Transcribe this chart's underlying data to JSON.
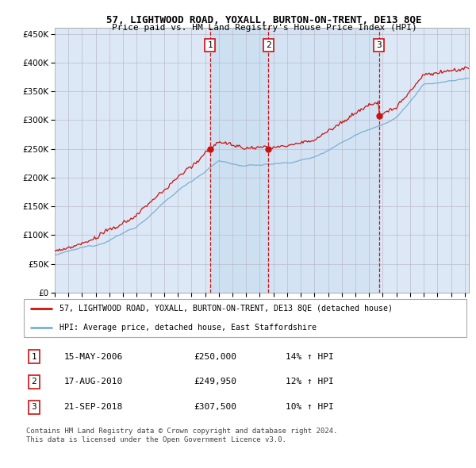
{
  "title": "57, LIGHTWOOD ROAD, YOXALL, BURTON-ON-TRENT, DE13 8QE",
  "subtitle": "Price paid vs. HM Land Registry's House Price Index (HPI)",
  "legend_line1": "57, LIGHTWOOD ROAD, YOXALL, BURTON-ON-TRENT, DE13 8QE (detached house)",
  "legend_line2": "HPI: Average price, detached house, East Staffordshire",
  "footnote": "Contains HM Land Registry data © Crown copyright and database right 2024.\nThis data is licensed under the Open Government Licence v3.0.",
  "sales": [
    {
      "num": 1,
      "date": "15-MAY-2006",
      "price": 250000,
      "hpi_pct": "14%"
    },
    {
      "num": 2,
      "date": "17-AUG-2010",
      "price": 249950,
      "hpi_pct": "12%"
    },
    {
      "num": 3,
      "date": "21-SEP-2018",
      "price": 307500,
      "hpi_pct": "10%"
    }
  ],
  "ylim": [
    0,
    460000
  ],
  "xlim_start": 1995.0,
  "xlim_end": 2025.3,
  "plot_bg": "#dce8f5",
  "red_line_color": "#cc1111",
  "blue_line_color": "#7ab0d4",
  "grid_color": "#bbbbcc",
  "sale_line_color": "#cc1111",
  "sale_box_color": "#cc1111",
  "shade_color": "#c8ddf0",
  "yticks": [
    0,
    50000,
    100000,
    150000,
    200000,
    250000,
    300000,
    350000,
    400000,
    450000
  ]
}
